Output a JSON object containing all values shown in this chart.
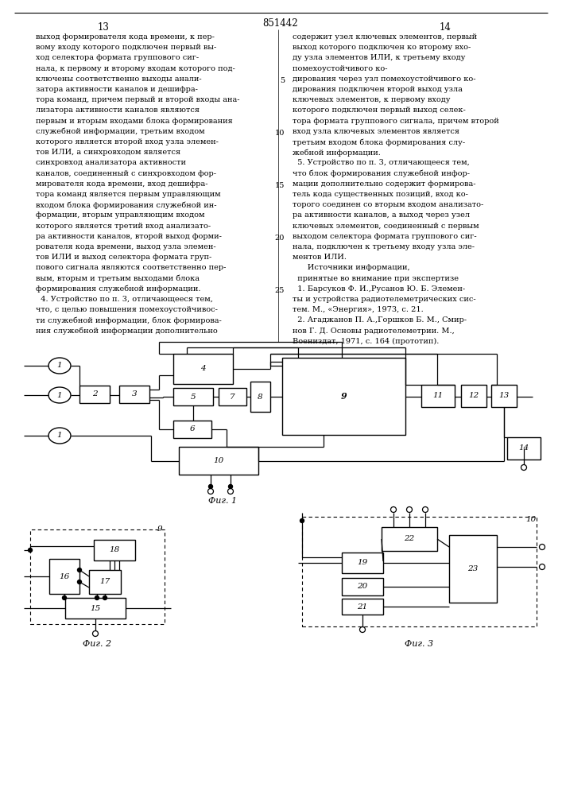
{
  "title_num": "851442",
  "page_left": "13",
  "page_right": "14",
  "fig1_caption": "Фиг. 1",
  "fig2_caption": "Фиг. 2",
  "fig3_caption": "Фиг. 3",
  "bg_color": "#ffffff",
  "left_text": "выход формирователя кода времени, к пер-\nвому входу которого подключен первый вы-\nход селектора формата группового сиг-\nнала, к первому и второму входам которого под-\nключены соответственно выходы анали-\nзатора активности каналов и дешифра-\nтора команд, причем первый и второй входы ана-\nлизатора активности каналов являются\nпервым и вторым входами блока формирования\nслужебной информации, третьим входом\nкоторого является второй вход узла элемен-\nтов ИЛИ, а синхровходом является\nсинхровход анализатора активности\nканалов, соединенный с синхровходом фор-\nмирователя кода времени, вход дешифра-\nтора команд является первым управляющим\nвходом блока формирования служебной ин-\nформации, вторым управляющим входом\nкоторого является третий вход анализато-\nра активности каналов, второй выход форми-\nрователя кода времени, выход узла элемен-\nтов ИЛИ и выход селектора формата груп-\nпового сигнала являются соответственно пер-\nвым, вторым и третьим выходами блока\nформирования служебной информации.\n  4. Устройство по п. 3, отличающееся тем,\nчто, с целью повышения помехоустойчивос-\nти служебной информации, блок формирова-\nния служебной информации дополнительно",
  "right_text": "содержит узел ключевых элементов, первый\nвыход которого подключен ко второму вхо-\nду узла элементов ИЛИ, к третьему входу\nпомехоустойчивого ко-\nдирования через узл помехоустойчивого ко-\nдирования подключен второй выход узла\nключевых элементов, к первому входу\nкоторого подключен первый выход селек-\nтора формата группового сигнала, причем второй\nвход узла ключевых элементов является\nтретьим входом блока формирования слу-\nжебной информации.\n  5. Устройство по п. 3, отличающееся тем,\nчто блок формирования служебной инфор-\nмации дополнительно содержит формирова-\nтель кода существенных позиций, вход ко-\nторого соединен со вторым входом анализато-\nра активности каналов, а выход через узел\nключевых элементов, соединенный с первым\nвыходом селектора формата группового сиг-\nнала, подключен к третьему входу узла эле-\nментов ИЛИ.\n      Источники информации,\n  принятые во внимание при экспертизе\n  1. Барсуков Ф. И.,Русанов Ю. Б. Элемен-\nты и устройства радиотелеметрических сис-\nтем. М., «Энергия», 1973, с. 21.\n  2. Агаджанов П. А.,Горшков Б. М., Смир-\nнов Г. Д. Основы радиотелеметрии. М.,\nВоениздат, 1971, с. 164 (прототип)."
}
